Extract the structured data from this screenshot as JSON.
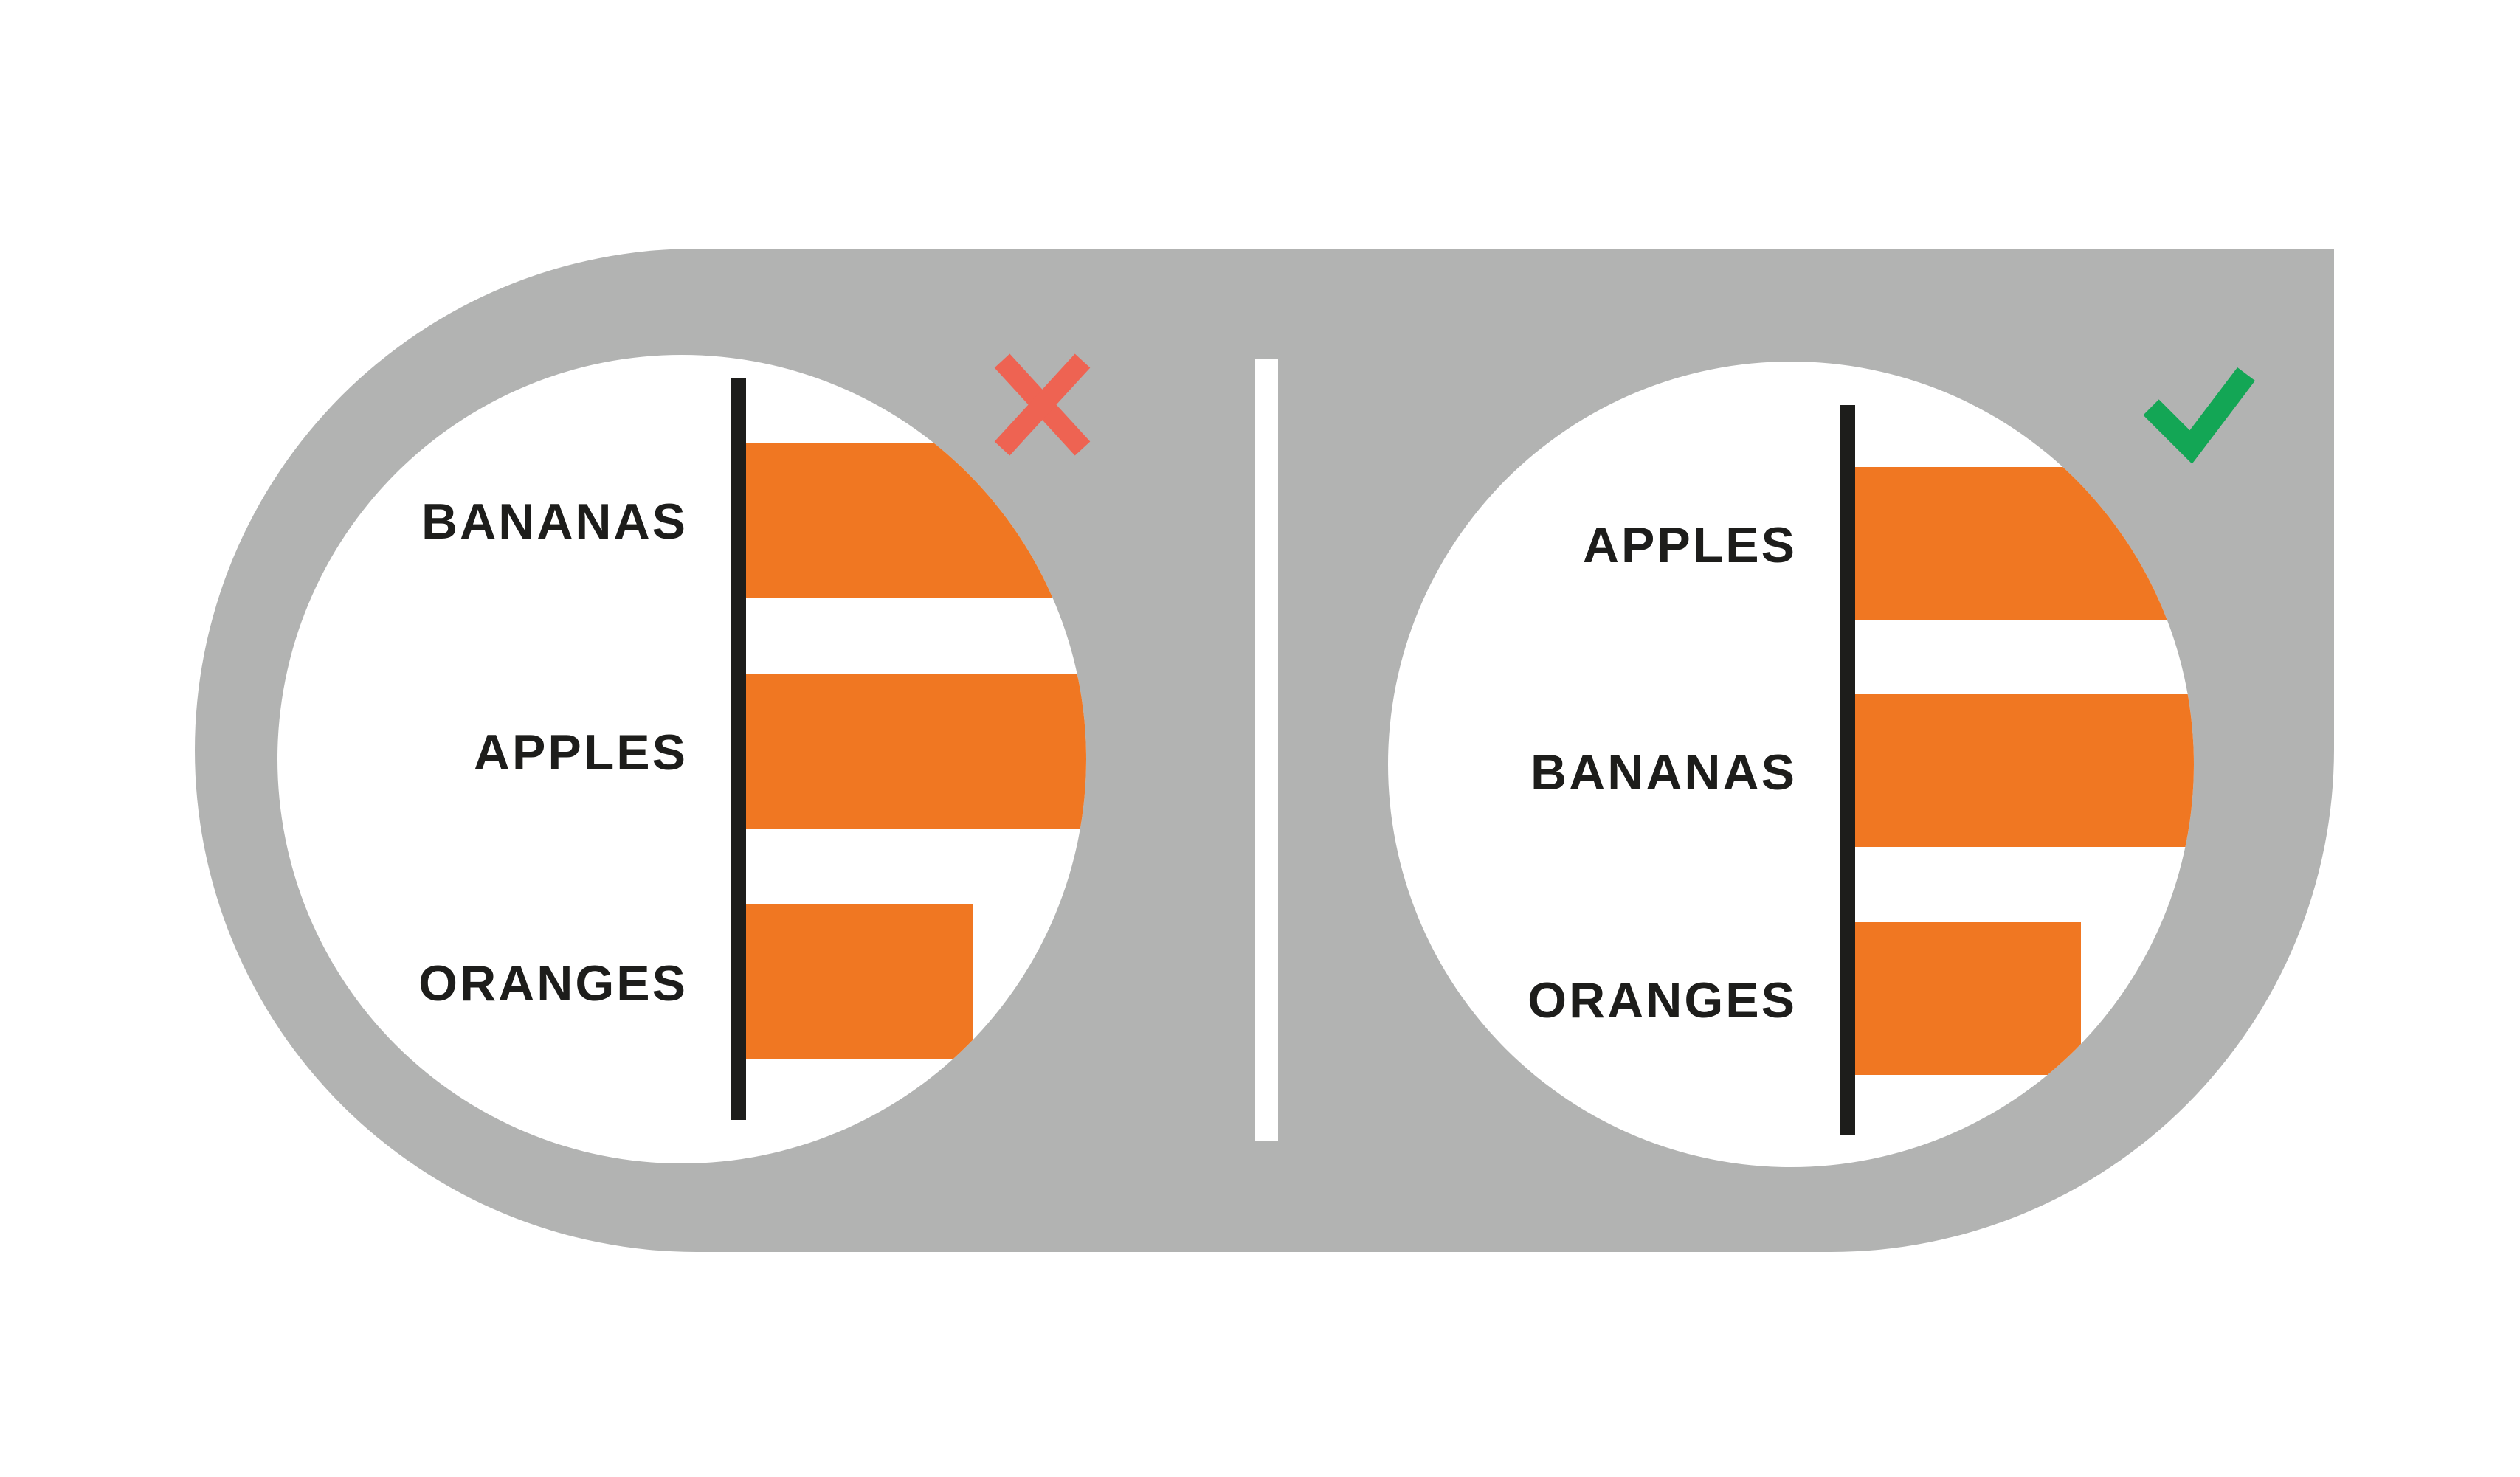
{
  "colors": {
    "panel": "#b2b3b2",
    "background": "#ffffff",
    "circle": "#ffffff",
    "bar": "#f07722",
    "axis": "#1d1d1b",
    "label": "#1d1d1b",
    "divider": "#ffffff",
    "wrong_mark": "#ee6352",
    "right_mark": "#13a655"
  },
  "icons": {
    "wrong": "cross-icon",
    "right": "checkmark-icon"
  },
  "chart_data": [
    {
      "type": "bar",
      "orientation": "horizontal",
      "verdict": "wrong",
      "categories": [
        "BANANAS",
        "APPLES",
        "ORANGES"
      ],
      "values": [
        0.9,
        1.0,
        0.55
      ]
    },
    {
      "type": "bar",
      "orientation": "horizontal",
      "verdict": "right",
      "categories": [
        "APPLES",
        "BANANAS",
        "ORANGES"
      ],
      "values": [
        0.9,
        1.0,
        0.55
      ]
    }
  ]
}
